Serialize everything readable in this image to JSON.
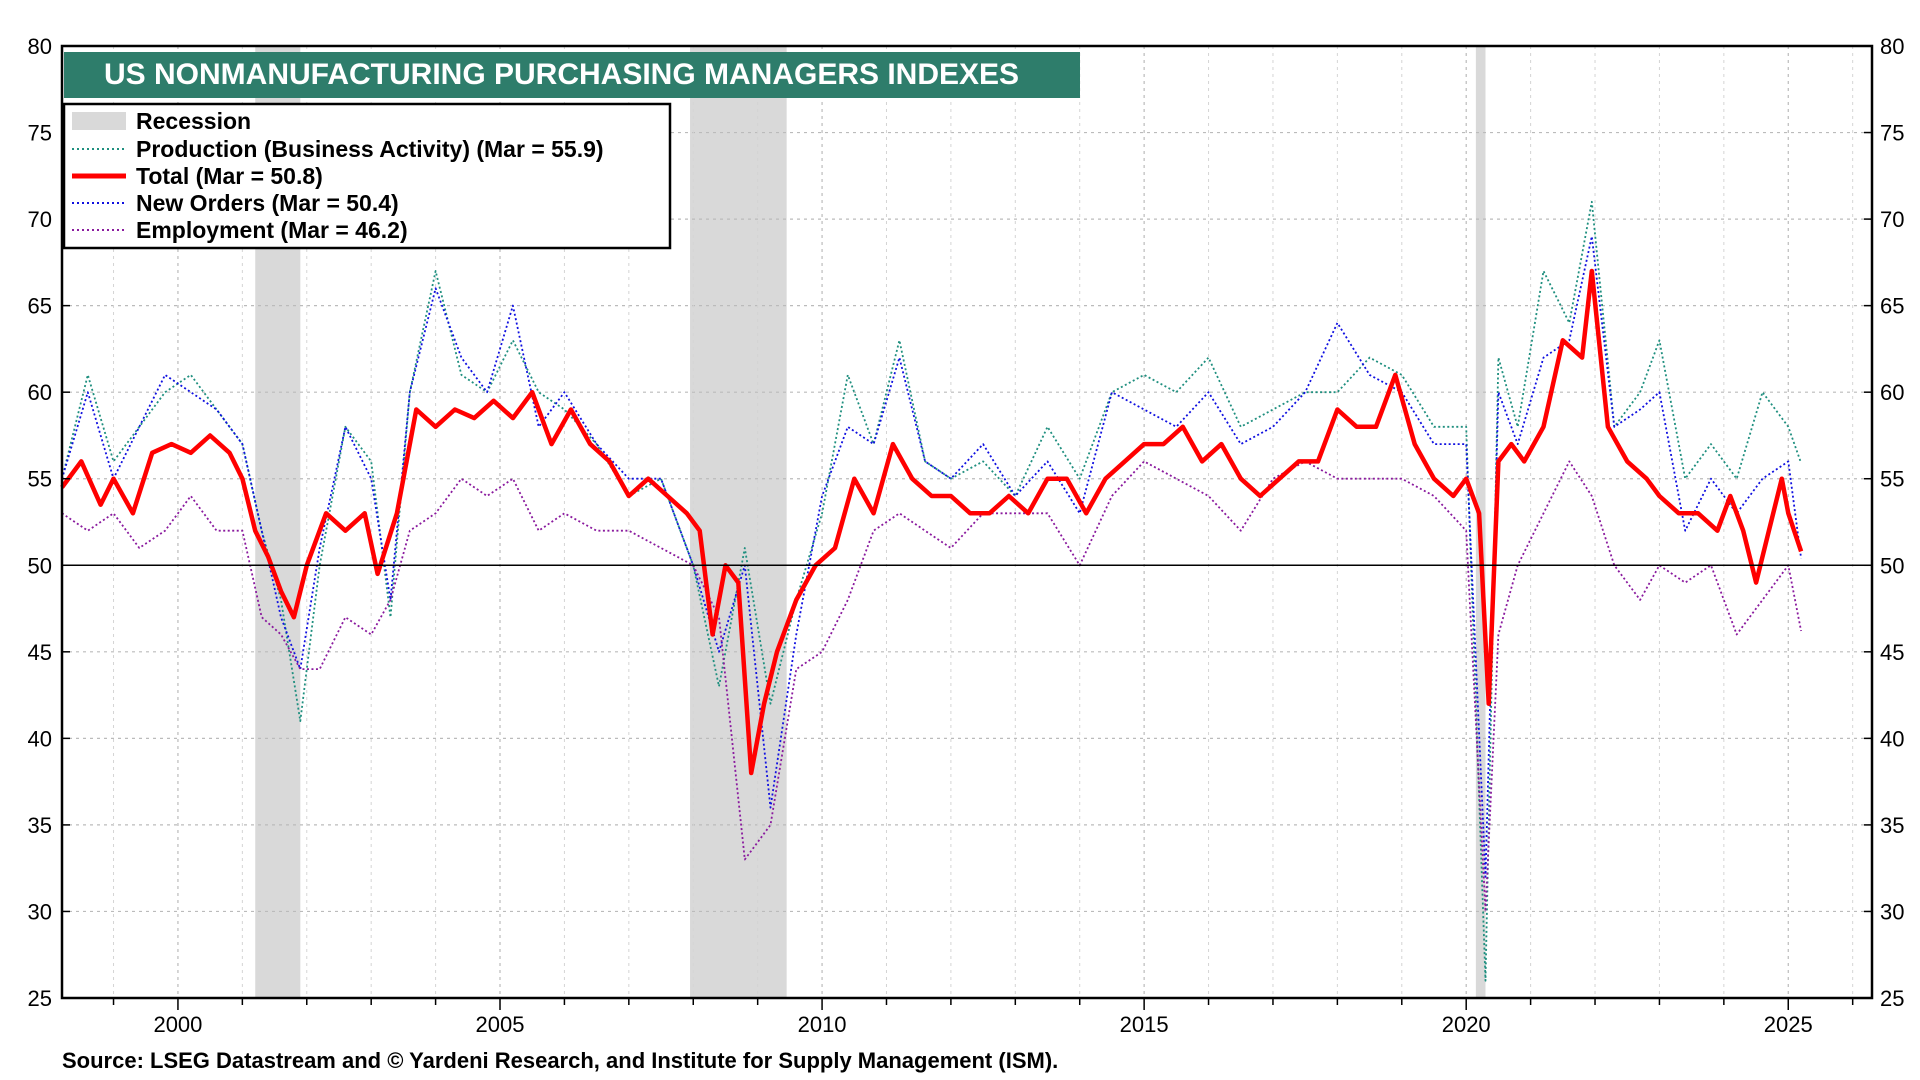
{
  "chart_data": {
    "type": "line",
    "title": "US NONMANUFACTURING PURCHASING MANAGERS INDEXES",
    "source": "Source: LSEG Datastream and © Yardeni Research, and Institute for Supply Management (ISM).",
    "ylim": [
      25,
      80
    ],
    "yticks": [
      25,
      30,
      35,
      40,
      45,
      50,
      55,
      60,
      65,
      70,
      75,
      80
    ],
    "xlim": [
      1998.2,
      2026.3
    ],
    "xticks": [
      2000,
      2005,
      2010,
      2015,
      2020,
      2025
    ],
    "reference_line": 50,
    "legend": {
      "recession": "Recession",
      "production": "Production  (Business Activity) (Mar = 55.9)",
      "total": "Total  (Mar = 50.8)",
      "new_orders": "New Orders (Mar = 50.4)",
      "employment": "Employment  (Mar = 46.2)"
    },
    "recessions": [
      [
        2001.2,
        2001.9
      ],
      [
        2007.95,
        2009.45
      ],
      [
        2020.15,
        2020.3
      ]
    ],
    "series": [
      {
        "name": "Total",
        "color": "#ff0000",
        "style": "solid",
        "x": [
          1998.2,
          1998.5,
          1998.8,
          1999.0,
          1999.3,
          1999.6,
          1999.9,
          2000.2,
          2000.5,
          2000.8,
          2001.0,
          2001.2,
          2001.4,
          2001.6,
          2001.8,
          2002.0,
          2002.3,
          2002.6,
          2002.9,
          2003.1,
          2003.4,
          2003.7,
          2004.0,
          2004.3,
          2004.6,
          2004.9,
          2005.2,
          2005.5,
          2005.8,
          2006.1,
          2006.4,
          2006.7,
          2007.0,
          2007.3,
          2007.6,
          2007.9,
          2008.1,
          2008.3,
          2008.5,
          2008.7,
          2008.9,
          2009.1,
          2009.3,
          2009.6,
          2009.9,
          2010.2,
          2010.5,
          2010.8,
          2011.1,
          2011.4,
          2011.7,
          2012.0,
          2012.3,
          2012.6,
          2012.9,
          2013.2,
          2013.5,
          2013.8,
          2014.1,
          2014.4,
          2014.7,
          2015.0,
          2015.3,
          2015.6,
          2015.9,
          2016.2,
          2016.5,
          2016.8,
          2017.1,
          2017.4,
          2017.7,
          2018.0,
          2018.3,
          2018.6,
          2018.9,
          2019.2,
          2019.5,
          2019.8,
          2020.0,
          2020.2,
          2020.35,
          2020.5,
          2020.7,
          2020.9,
          2021.2,
          2021.5,
          2021.8,
          2021.95,
          2022.2,
          2022.5,
          2022.8,
          2023.0,
          2023.3,
          2023.6,
          2023.9,
          2024.1,
          2024.3,
          2024.5,
          2024.7,
          2024.9,
          2025.0,
          2025.2
        ],
        "y": [
          54.5,
          56,
          53.5,
          55,
          53,
          56.5,
          57,
          56.5,
          57.5,
          56.5,
          55,
          52,
          50.5,
          48.5,
          47,
          50,
          53,
          52,
          53,
          49.5,
          53,
          59,
          58,
          59,
          58.5,
          59.5,
          58.5,
          60,
          57,
          59,
          57,
          56,
          54,
          55,
          54,
          53,
          52,
          46,
          50,
          49,
          38,
          42,
          45,
          48,
          50,
          51,
          55,
          53,
          57,
          55,
          54,
          54,
          53,
          53,
          54,
          53,
          55,
          55,
          53,
          55,
          56,
          57,
          57,
          58,
          56,
          57,
          55,
          54,
          55,
          56,
          56,
          59,
          58,
          58,
          61,
          57,
          55,
          54,
          55,
          53,
          42,
          56,
          57,
          56,
          58,
          63,
          62,
          67,
          58,
          56,
          55,
          54,
          53,
          53,
          52,
          54,
          52,
          49,
          52,
          55,
          53,
          50.8
        ]
      },
      {
        "name": "Production",
        "color": "#1f8f7f",
        "style": "dotted",
        "x": [
          1998.2,
          1998.6,
          1999.0,
          1999.4,
          1999.8,
          2000.2,
          2000.6,
          2001.0,
          2001.3,
          2001.6,
          2001.9,
          2002.2,
          2002.6,
          2003.0,
          2003.3,
          2003.6,
          2004.0,
          2004.4,
          2004.8,
          2005.2,
          2005.6,
          2006.0,
          2006.5,
          2007.0,
          2007.5,
          2008.0,
          2008.4,
          2008.8,
          2009.2,
          2009.6,
          2010.0,
          2010.4,
          2010.8,
          2011.2,
          2011.6,
          2012.0,
          2012.5,
          2013.0,
          2013.5,
          2014.0,
          2014.5,
          2015.0,
          2015.5,
          2016.0,
          2016.5,
          2017.0,
          2017.5,
          2018.0,
          2018.5,
          2019.0,
          2019.5,
          2020.0,
          2020.3,
          2020.5,
          2020.8,
          2021.2,
          2021.6,
          2021.95,
          2022.3,
          2022.7,
          2023.0,
          2023.4,
          2023.8,
          2024.2,
          2024.6,
          2025.0,
          2025.2
        ],
        "y": [
          55,
          61,
          56,
          58,
          60,
          61,
          59,
          57,
          52,
          48,
          41,
          50,
          58,
          56,
          47,
          60,
          67,
          61,
          60,
          63,
          60,
          59,
          57,
          54,
          55,
          50,
          43,
          51,
          42,
          48,
          53,
          61,
          57,
          63,
          56,
          55,
          56,
          54,
          58,
          55,
          60,
          61,
          60,
          62,
          58,
          59,
          60,
          60,
          62,
          61,
          58,
          58,
          26,
          62,
          58,
          67,
          64,
          71,
          58,
          60,
          63,
          55,
          57,
          55,
          60,
          58,
          55.9
        ]
      },
      {
        "name": "New Orders",
        "color": "#1010e0",
        "style": "dotted",
        "x": [
          1998.2,
          1998.6,
          1999.0,
          1999.4,
          1999.8,
          2000.2,
          2000.6,
          2001.0,
          2001.3,
          2001.6,
          2001.9,
          2002.2,
          2002.6,
          2003.0,
          2003.3,
          2003.6,
          2004.0,
          2004.4,
          2004.8,
          2005.2,
          2005.6,
          2006.0,
          2006.5,
          2007.0,
          2007.5,
          2008.0,
          2008.4,
          2008.8,
          2009.2,
          2009.6,
          2010.0,
          2010.4,
          2010.8,
          2011.2,
          2011.6,
          2012.0,
          2012.5,
          2013.0,
          2013.5,
          2014.0,
          2014.5,
          2015.0,
          2015.5,
          2016.0,
          2016.5,
          2017.0,
          2017.5,
          2018.0,
          2018.5,
          2019.0,
          2019.5,
          2020.0,
          2020.3,
          2020.5,
          2020.8,
          2021.2,
          2021.6,
          2021.95,
          2022.3,
          2022.7,
          2023.0,
          2023.4,
          2023.8,
          2024.2,
          2024.6,
          2025.0,
          2025.2
        ],
        "y": [
          55,
          60,
          55,
          58,
          61,
          60,
          59,
          57,
          52,
          47,
          44,
          51,
          58,
          55,
          48,
          60,
          66,
          62,
          60,
          65,
          58,
          60,
          57,
          55,
          55,
          50,
          45,
          50,
          36,
          46,
          54,
          58,
          57,
          62,
          56,
          55,
          57,
          54,
          56,
          53,
          60,
          59,
          58,
          60,
          57,
          58,
          60,
          64,
          61,
          60,
          57,
          57,
          32,
          60,
          57,
          62,
          63,
          69,
          58,
          59,
          60,
          52,
          55,
          53,
          55,
          56,
          50.4
        ]
      },
      {
        "name": "Employment",
        "color": "#8a1a9e",
        "style": "dotted",
        "x": [
          1998.2,
          1998.6,
          1999.0,
          1999.4,
          1999.8,
          2000.2,
          2000.6,
          2001.0,
          2001.3,
          2001.6,
          2001.9,
          2002.2,
          2002.6,
          2003.0,
          2003.3,
          2003.6,
          2004.0,
          2004.4,
          2004.8,
          2005.2,
          2005.6,
          2006.0,
          2006.5,
          2007.0,
          2007.5,
          2008.0,
          2008.4,
          2008.8,
          2009.2,
          2009.6,
          2010.0,
          2010.4,
          2010.8,
          2011.2,
          2011.6,
          2012.0,
          2012.5,
          2013.0,
          2013.5,
          2014.0,
          2014.5,
          2015.0,
          2015.5,
          2016.0,
          2016.5,
          2017.0,
          2017.5,
          2018.0,
          2018.5,
          2019.0,
          2019.5,
          2020.0,
          2020.3,
          2020.5,
          2020.8,
          2021.2,
          2021.6,
          2021.95,
          2022.3,
          2022.7,
          2023.0,
          2023.4,
          2023.8,
          2024.2,
          2024.6,
          2025.0,
          2025.2
        ],
        "y": [
          53,
          52,
          53,
          51,
          52,
          54,
          52,
          52,
          47,
          46,
          44,
          44,
          47,
          46,
          48,
          52,
          53,
          55,
          54,
          55,
          52,
          53,
          52,
          52,
          51,
          50,
          47,
          33,
          35,
          44,
          45,
          48,
          52,
          53,
          52,
          51,
          53,
          53,
          53,
          50,
          54,
          56,
          55,
          54,
          52,
          55,
          56,
          55,
          55,
          55,
          54,
          52,
          30,
          46,
          50,
          53,
          56,
          54,
          50,
          48,
          50,
          49,
          50,
          46,
          48,
          50,
          46.2
        ]
      }
    ]
  }
}
